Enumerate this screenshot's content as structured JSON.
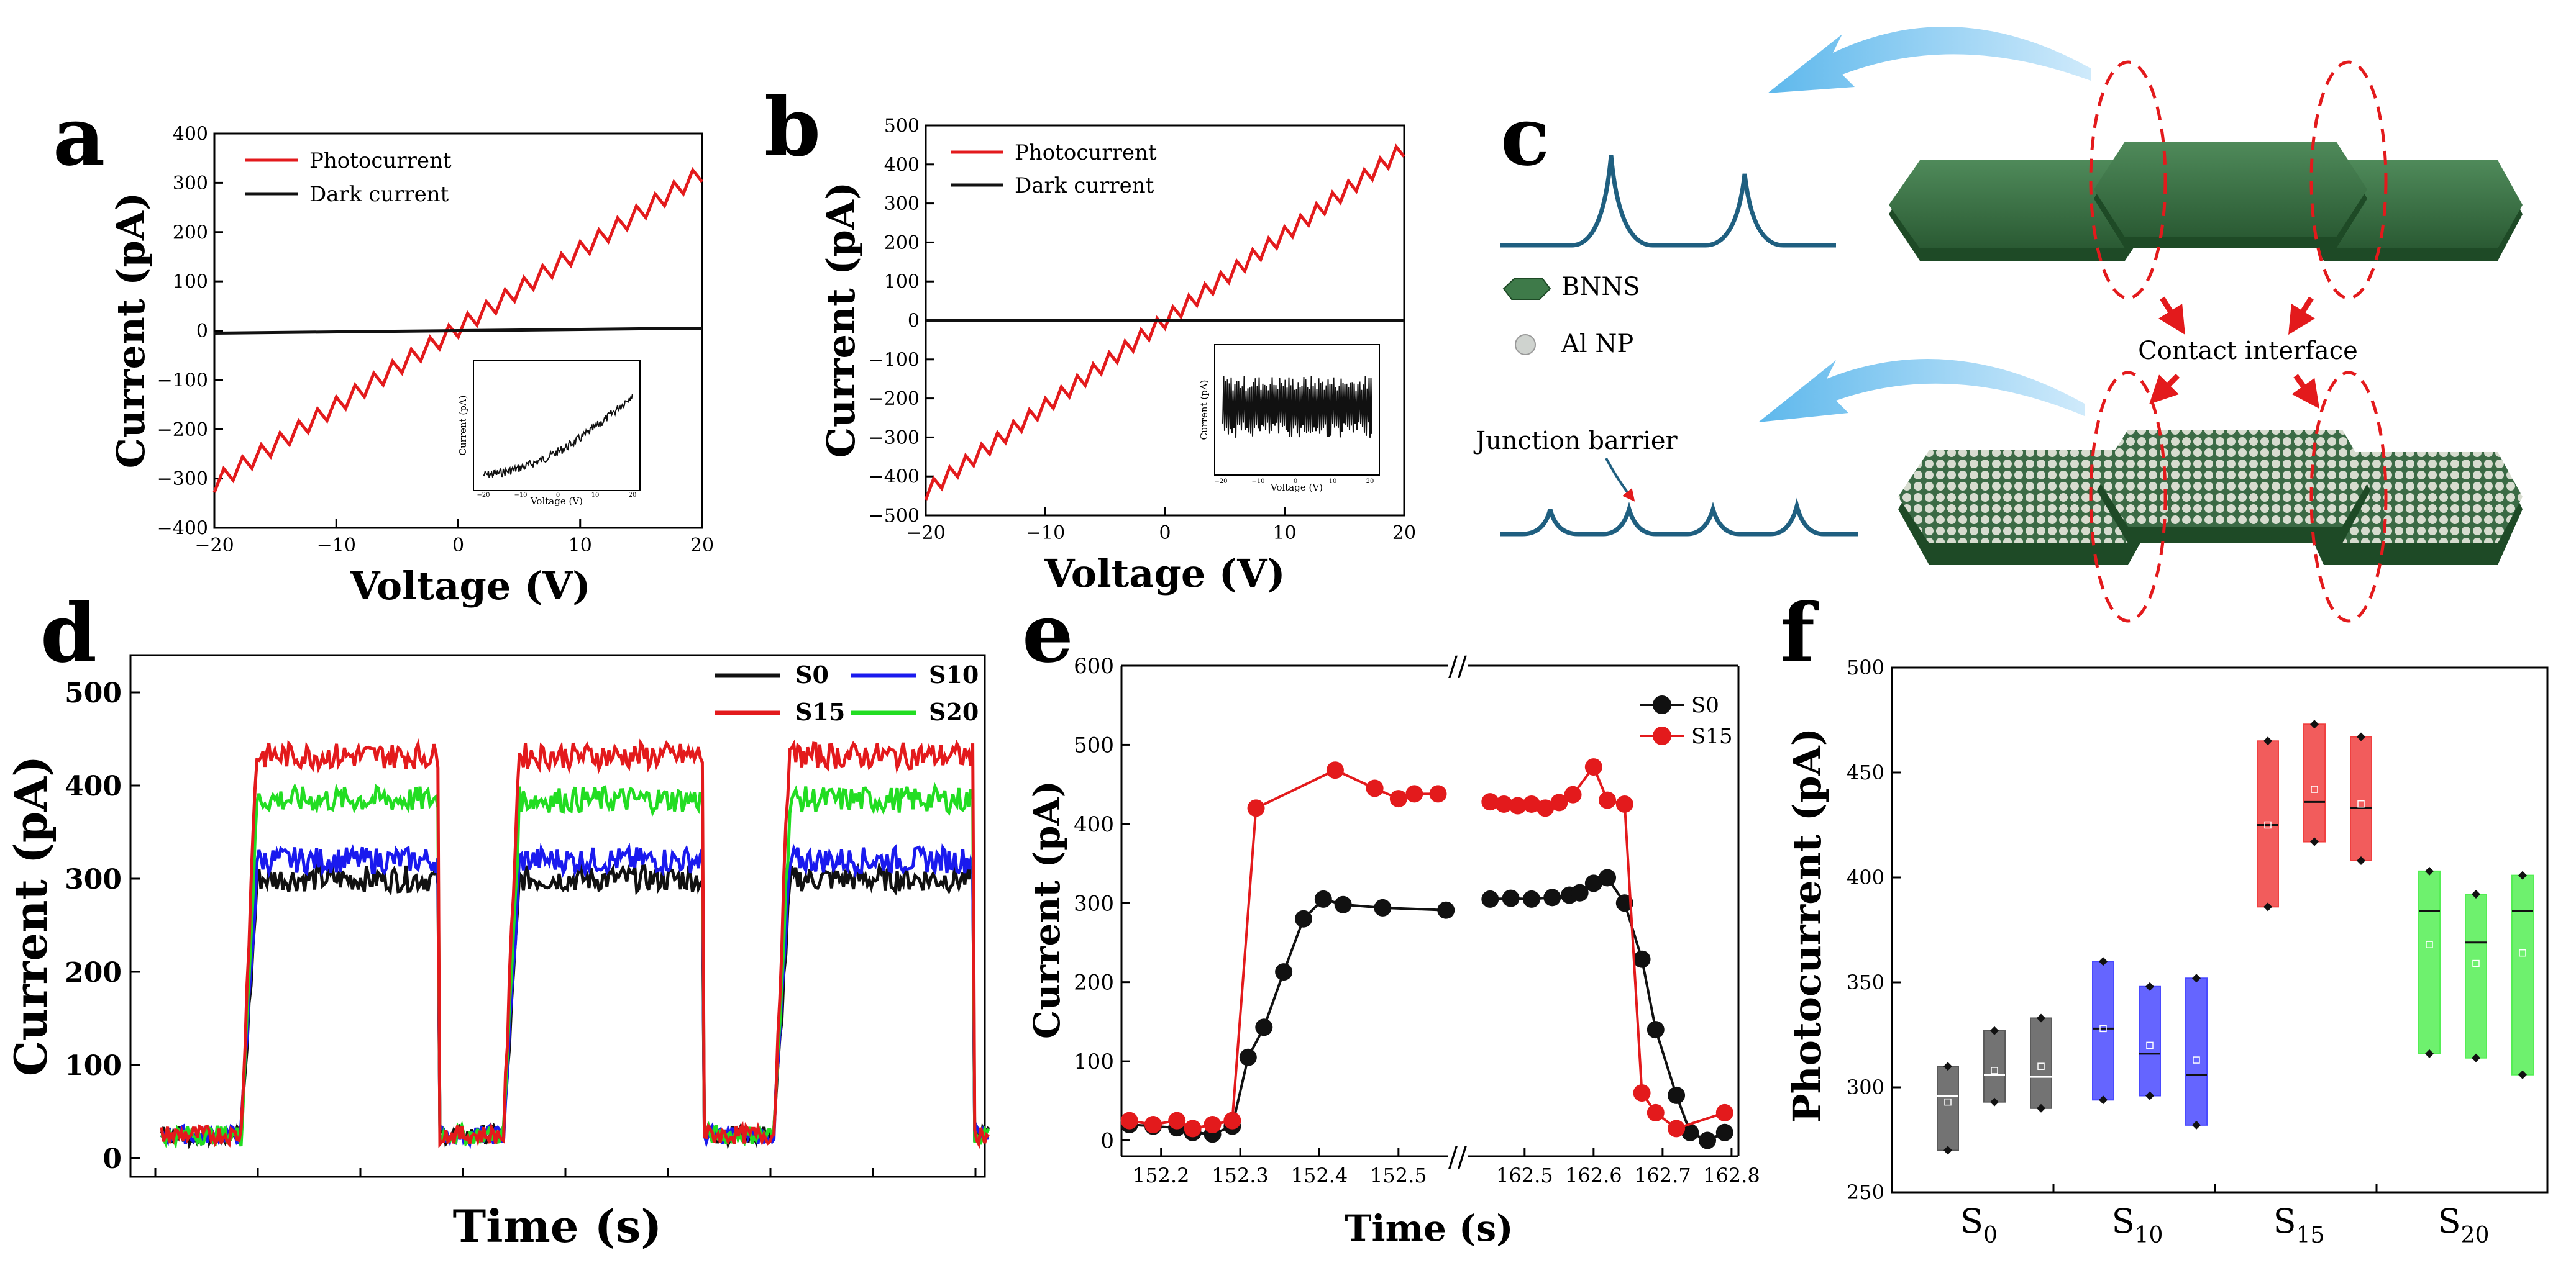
{
  "panels": {
    "a": {
      "letter": "a"
    },
    "b": {
      "letter": "b"
    },
    "c": {
      "letter": "c"
    },
    "d": {
      "letter": "d"
    },
    "e": {
      "letter": "e"
    },
    "f": {
      "letter": "f"
    }
  },
  "diagram_c": {
    "legend_bnns": "BNNS",
    "legend_al": "Al NP",
    "contact_label": "Contact interface",
    "junction_label": "Junction barrier"
  },
  "colors": {
    "red": "#e31a1c",
    "black": "#111111",
    "blue": "#1a1aee",
    "green": "#22dd22",
    "box_gray": "#5a5a5a",
    "box_blue": "#4a4aff",
    "box_red": "#f04040",
    "box_green": "#55ee55",
    "barrier": "#1f5f80",
    "hex_green": "#2f6b3a",
    "arrow_blue": "#7ec8ef"
  },
  "chart_data": [
    {
      "panel": "a",
      "type": "line",
      "title": "",
      "xlabel": "Voltage (V)",
      "ylabel": "Current (pA)",
      "xlim": [
        -20,
        20
      ],
      "ylim": [
        -400,
        400
      ],
      "xticks": [
        -20,
        -10,
        0,
        10,
        20
      ],
      "yticks": [
        -400,
        -300,
        -200,
        -100,
        0,
        100,
        200,
        300,
        400
      ],
      "series": [
        {
          "name": "Photocurrent",
          "color": "#e31a1c",
          "x": [
            -20,
            1,
            20
          ],
          "y": [
            -310,
            0,
            320
          ],
          "note": "zigzag ~25 oscillations"
        },
        {
          "name": "Dark current",
          "color": "#111111",
          "x": [
            -20,
            20
          ],
          "y": [
            -5,
            5
          ]
        }
      ],
      "legend_position": "top-left",
      "inset": {
        "xlabel": "Voltage (V)",
        "ylabel": "Current (pA)",
        "xticks": [
          -20,
          -10,
          0,
          10,
          20
        ],
        "yticks": [
          -6,
          -4,
          -2,
          0,
          2,
          4
        ]
      }
    },
    {
      "panel": "b",
      "type": "line",
      "title": "",
      "xlabel": "Voltage (V)",
      "ylabel": "Current (pA)",
      "xlim": [
        -20,
        20
      ],
      "ylim": [
        -500,
        500
      ],
      "xticks": [
        -20,
        -10,
        0,
        10,
        20
      ],
      "yticks": [
        -500,
        -400,
        -300,
        -200,
        -100,
        0,
        100,
        200,
        300,
        400,
        500
      ],
      "series": [
        {
          "name": "Photocurrent",
          "color": "#e31a1c",
          "x": [
            -20,
            -1,
            20
          ],
          "y": [
            -440,
            0,
            440
          ],
          "note": "zigzag ~30 oscillations"
        },
        {
          "name": "Dark current",
          "color": "#111111",
          "x": [
            -20,
            20
          ],
          "y": [
            0,
            0
          ]
        }
      ],
      "legend_position": "top-left",
      "inset": {
        "xlabel": "Voltage (V)",
        "ylabel": "Current (pA)",
        "xticks": [
          -20,
          -10,
          0,
          10,
          20
        ],
        "yticks": [
          -2,
          -1,
          0,
          1,
          2
        ]
      }
    },
    {
      "panel": "d",
      "type": "line",
      "xlabel": "Time (s)",
      "ylabel": "Current (pA)",
      "ylim": [
        -20,
        540
      ],
      "yticks": [
        0,
        100,
        200,
        300,
        400,
        500
      ],
      "legend_position": "top-right",
      "on_intervals": [
        [
          0.1,
          0.35
        ],
        [
          0.43,
          0.68
        ],
        [
          0.77,
          1.02
        ]
      ],
      "series": [
        {
          "name": "S0",
          "color": "#111111",
          "on_level": 300,
          "off_level": 25
        },
        {
          "name": "S10",
          "color": "#1a1aee",
          "on_level": 320,
          "off_level": 25
        },
        {
          "name": "S15",
          "color": "#e31a1c",
          "on_level": 432,
          "off_level": 25
        },
        {
          "name": "S20",
          "color": "#22dd22",
          "on_level": 385,
          "off_level": 25
        }
      ]
    },
    {
      "panel": "e",
      "type": "line",
      "xlabel": "Time (s)",
      "ylabel": "Current (pA)",
      "ylim": [
        -20,
        600
      ],
      "yticks": [
        0,
        100,
        200,
        300,
        400,
        500,
        600
      ],
      "xticks_left": [
        "152.2",
        "152.3",
        "152.4",
        "152.5"
      ],
      "xticks_right": [
        "162.5",
        "162.6",
        "162.7",
        "162.8"
      ],
      "axis_break": "//",
      "legend_position": "top-right",
      "series": [
        {
          "name": "S0",
          "color": "#111111",
          "left_x": [
            152.16,
            152.19,
            152.22,
            152.24,
            152.265,
            152.29,
            152.31,
            152.33,
            152.355,
            152.38,
            152.405,
            152.43,
            152.48,
            152.56
          ],
          "left_y": [
            20,
            18,
            16,
            10,
            8,
            18,
            105,
            143,
            213,
            280,
            305,
            298,
            294,
            291
          ],
          "right_x": [
            162.45,
            162.48,
            162.51,
            162.54,
            162.565,
            162.58,
            162.6,
            162.62,
            162.645,
            162.67,
            162.69,
            162.72,
            162.74,
            162.765,
            162.79
          ],
          "right_y": [
            305,
            306,
            305,
            307,
            310,
            313,
            325,
            332,
            300,
            229,
            140,
            57,
            10,
            0,
            10
          ]
        },
        {
          "name": "S15",
          "color": "#e31a1c",
          "left_x": [
            152.16,
            152.19,
            152.22,
            152.24,
            152.265,
            152.29,
            152.32,
            152.42,
            152.47,
            152.5,
            152.52,
            152.55
          ],
          "left_y": [
            25,
            20,
            25,
            15,
            20,
            25,
            420,
            468,
            445,
            432,
            438,
            438
          ],
          "right_x": [
            162.45,
            162.47,
            162.49,
            162.51,
            162.53,
            162.55,
            162.57,
            162.6,
            162.62,
            162.645,
            162.67,
            162.69,
            162.72,
            162.79
          ],
          "right_y": [
            428,
            425,
            423,
            425,
            420,
            427,
            437,
            472,
            430,
            425,
            60,
            35,
            15,
            35
          ]
        }
      ]
    },
    {
      "panel": "f",
      "type": "box",
      "ylabel": "Photocurrent (pA)",
      "ylim": [
        250,
        500
      ],
      "yticks": [
        250,
        300,
        350,
        400,
        450,
        500
      ],
      "groups": [
        {
          "label": "S",
          "sub": "0",
          "color": "#5a5a5a",
          "boxes": [
            {
              "low": 270,
              "high": 310,
              "median": 296,
              "mean": 293
            },
            {
              "low": 293,
              "high": 327,
              "median": 306,
              "mean": 308
            },
            {
              "low": 290,
              "high": 333,
              "median": 305,
              "mean": 310
            }
          ]
        },
        {
          "label": "S",
          "sub": "10",
          "color": "#4a4aff",
          "boxes": [
            {
              "low": 294,
              "high": 360,
              "median": 328,
              "mean": 328
            },
            {
              "low": 296,
              "high": 348,
              "median": 316,
              "mean": 320
            },
            {
              "low": 282,
              "high": 352,
              "median": 306,
              "mean": 313
            }
          ]
        },
        {
          "label": "S",
          "sub": "15",
          "color": "#f04040",
          "boxes": [
            {
              "low": 386,
              "high": 465,
              "median": 425,
              "mean": 425
            },
            {
              "low": 417,
              "high": 473,
              "median": 436,
              "mean": 442
            },
            {
              "low": 408,
              "high": 467,
              "median": 433,
              "mean": 435
            }
          ]
        },
        {
          "label": "S",
          "sub": "20",
          "color": "#55ee55",
          "boxes": [
            {
              "low": 316,
              "high": 403,
              "median": 384,
              "mean": 368
            },
            {
              "low": 314,
              "high": 392,
              "median": 369,
              "mean": 359
            },
            {
              "low": 306,
              "high": 401,
              "median": 384,
              "mean": 364
            }
          ]
        }
      ]
    }
  ]
}
